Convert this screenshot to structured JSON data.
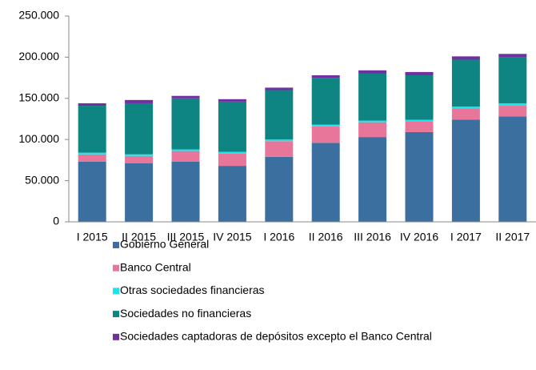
{
  "chart_data": {
    "type": "stacked-bar",
    "categories": [
      "I 2015",
      "II 2015",
      "III 2015",
      "IV 2015",
      "I 2016",
      "II 2016",
      "III 2016",
      "IV 2016",
      "I 2017",
      "II 2017"
    ],
    "series": [
      {
        "name": "Gobierno General",
        "color": "#3a6f9f",
        "values": [
          73000,
          71000,
          73000,
          68000,
          79000,
          96000,
          103000,
          109000,
          124000,
          128000
        ]
      },
      {
        "name": "Banco Central",
        "color": "#e8769b",
        "values": [
          9000,
          9000,
          13000,
          15000,
          19000,
          20000,
          18000,
          13000,
          14000,
          13000
        ]
      },
      {
        "name": "Otras sociedades financieras",
        "color": "#1fe3e8",
        "values": [
          2000,
          2000,
          2000,
          2000,
          2000,
          2000,
          2000,
          2000,
          2000,
          3000
        ]
      },
      {
        "name": "Sociedades no financieras",
        "color": "#0e8582",
        "values": [
          57000,
          62000,
          62000,
          61000,
          60000,
          57000,
          57000,
          54000,
          57000,
          56000
        ]
      },
      {
        "name": "Sociedades captadoras de depósitos excepto el Banco Central",
        "color": "#7030a0",
        "values": [
          3000,
          4000,
          3000,
          3000,
          3000,
          3000,
          4000,
          4000,
          4000,
          4000
        ]
      }
    ],
    "ylim": [
      0,
      250000
    ],
    "yticks": [
      0,
      {
        "value": 50000,
        "label": "50.000"
      },
      {
        "value": 100000,
        "label": "100.000"
      },
      {
        "value": 150000,
        "label": "150.000"
      },
      {
        "value": 200000,
        "label": "200.000"
      },
      {
        "value": 250000,
        "label": "250.000"
      }
    ]
  }
}
